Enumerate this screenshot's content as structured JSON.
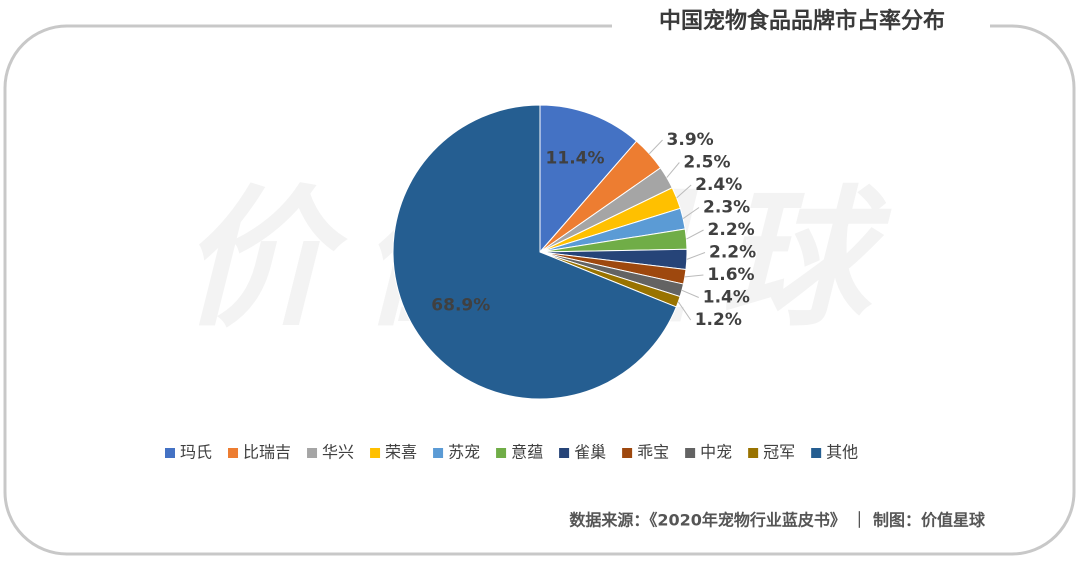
{
  "chart_data": {
    "type": "pie",
    "title": "中国宠物食品品牌市占率分布",
    "watermark": "价值星球",
    "source": "数据来源：《2020年宠物行业蓝皮书》 ｜ 制图：价值星球",
    "categories": [
      "玛氏",
      "比瑞吉",
      "华兴",
      "荣喜",
      "苏宠",
      "意蕴",
      "雀巢",
      "乖宝",
      "中宠",
      "冠军",
      "其他"
    ],
    "values": [
      11.4,
      3.9,
      2.5,
      2.4,
      2.3,
      2.2,
      2.2,
      1.6,
      1.4,
      1.2,
      68.9
    ],
    "value_labels": [
      "11.4%",
      "3.9%",
      "2.5%",
      "2.4%",
      "2.3%",
      "2.2%",
      "2.2%",
      "1.6%",
      "1.4%",
      "1.2%",
      "68.9%"
    ],
    "colors": [
      "#4472c4",
      "#ed7d31",
      "#a5a5a5",
      "#ffc000",
      "#5b9bd5",
      "#70ad47",
      "#264478",
      "#9e480e",
      "#636363",
      "#997300",
      "#255e91"
    ],
    "legend": "bottom"
  }
}
